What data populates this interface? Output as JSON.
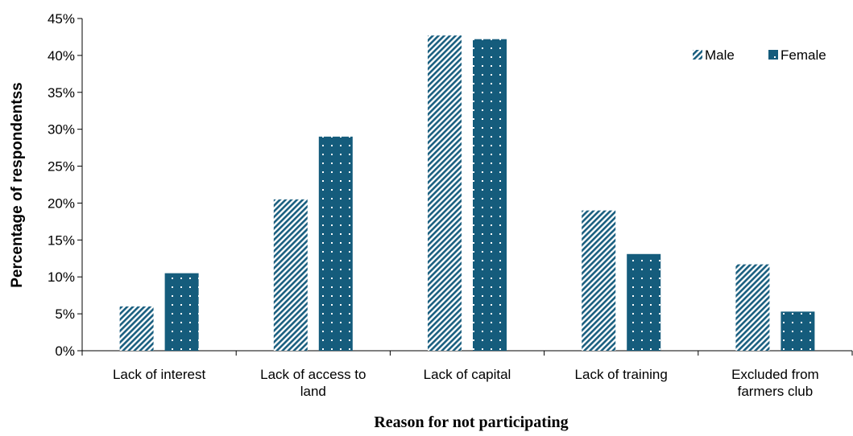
{
  "chart_data": {
    "type": "bar",
    "title": "",
    "xlabel": "Reason for not participating",
    "ylabel": "Percentage of respondentss",
    "categories": [
      [
        "Lack of interest"
      ],
      [
        "Lack of access to",
        "land"
      ],
      [
        "Lack of capital"
      ],
      [
        "Lack of training"
      ],
      [
        "Excluded from",
        "farmers club"
      ]
    ],
    "series": [
      {
        "name": "Male",
        "values": [
          6.0,
          20.5,
          42.7,
          19.0,
          11.7
        ],
        "color": "#1a5f80",
        "pattern": "diagonal-hatch"
      },
      {
        "name": "Female",
        "values": [
          10.5,
          29.0,
          42.2,
          13.1,
          5.3
        ],
        "color": "#155c7c",
        "pattern": "dotted"
      }
    ],
    "ylim": [
      0,
      45
    ],
    "yticks": [
      0,
      5,
      10,
      15,
      20,
      25,
      30,
      35,
      40,
      45
    ],
    "ytick_format": "percent",
    "grid": false,
    "legend_position": "top-right"
  }
}
